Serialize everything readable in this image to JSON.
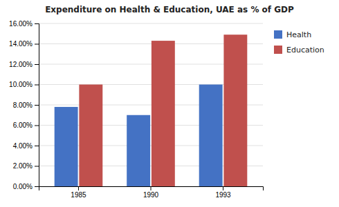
{
  "chart_data": {
    "type": "bar",
    "title": "Expenditure on Health & Education, UAE as % of GDP",
    "categories": [
      "1985",
      "1990",
      "1993"
    ],
    "series": [
      {
        "name": "Health",
        "color": "#4472C4",
        "values": [
          0.078,
          0.07,
          0.1
        ]
      },
      {
        "name": "Education",
        "color": "#C0504D",
        "values": [
          0.1,
          0.143,
          0.149
        ]
      }
    ],
    "ylim": [
      0,
      0.16
    ],
    "yticks": [
      {
        "value": 0.0,
        "label": "0.00%"
      },
      {
        "value": 0.02,
        "label": "2.00%"
      },
      {
        "value": 0.04,
        "label": "4.00%"
      },
      {
        "value": 0.06,
        "label": "6.00%"
      },
      {
        "value": 0.08,
        "label": "8.00%"
      },
      {
        "value": 0.1,
        "label": "10.00%"
      },
      {
        "value": 0.12,
        "label": "12.00%"
      },
      {
        "value": 0.14,
        "label": "14.00%"
      },
      {
        "value": 0.16,
        "label": "16.00%"
      }
    ],
    "grid": true,
    "legend": "right"
  }
}
